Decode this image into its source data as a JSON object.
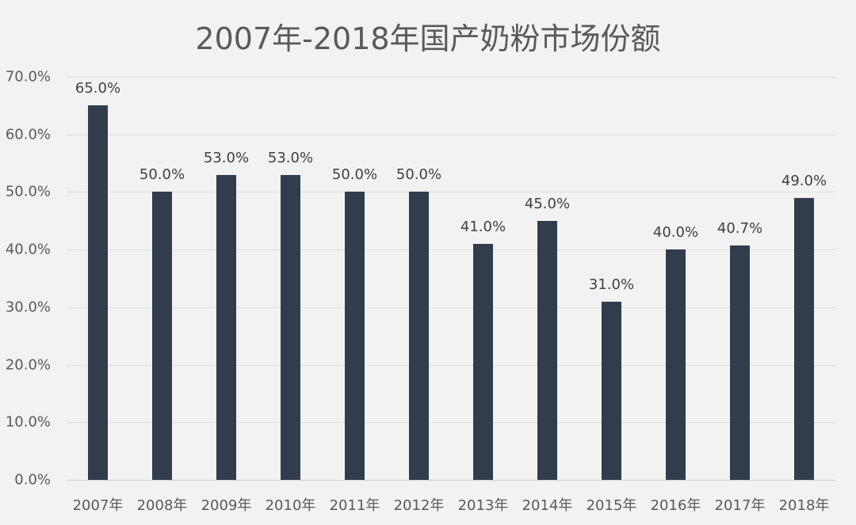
{
  "chart_data": {
    "type": "bar",
    "title": "2007年-2018年国产奶粉市场份额",
    "xlabel": "",
    "ylabel": "",
    "ylim": [
      0,
      70
    ],
    "grid": true,
    "legend": null,
    "y_ticks": [
      "0.0%",
      "10.0%",
      "20.0%",
      "30.0%",
      "40.0%",
      "50.0%",
      "60.0%",
      "70.0%"
    ],
    "categories": [
      "2007年",
      "2008年",
      "2009年",
      "2010年",
      "2011年",
      "2012年",
      "2013年",
      "2014年",
      "2015年",
      "2016年",
      "2017年",
      "2018年"
    ],
    "values": [
      65.0,
      50.0,
      53.0,
      53.0,
      50.0,
      50.0,
      41.0,
      45.0,
      31.0,
      40.0,
      40.7,
      49.0
    ],
    "data_labels": [
      "65.0%",
      "50.0%",
      "53.0%",
      "53.0%",
      "50.0%",
      "50.0%",
      "41.0%",
      "45.0%",
      "31.0%",
      "40.0%",
      "40.7%",
      "49.0%"
    ],
    "bar_color": "#323c4d",
    "background_color": "#f2f2f2"
  }
}
